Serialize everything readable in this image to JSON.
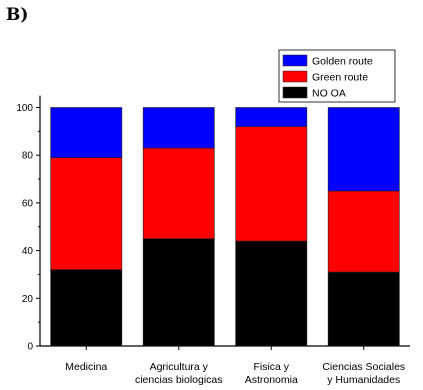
{
  "panel_label": "B)",
  "chart_data": {
    "type": "bar",
    "stacked": true,
    "categories": [
      [
        "Medicina"
      ],
      [
        "Agricultura y",
        "ciencias biologicas"
      ],
      [
        "Fisica y",
        "Astronomia"
      ],
      [
        "Ciencias Sociales",
        "y Humanidades"
      ]
    ],
    "series": [
      {
        "name": "NO OA",
        "color": "#000000",
        "values": [
          32,
          45,
          44,
          31
        ]
      },
      {
        "name": "Green route",
        "color": "#ff0000",
        "values": [
          47,
          38,
          48,
          34
        ]
      },
      {
        "name": "Golden route",
        "color": "#0000ff",
        "values": [
          21,
          17,
          8,
          35
        ]
      }
    ],
    "legend_order": [
      "Golden route",
      "Green route",
      "NO OA"
    ],
    "legend_position": "top-right",
    "ylim": [
      0,
      105
    ],
    "yticks": [
      0,
      20,
      40,
      60,
      80,
      100
    ],
    "grid": false
  }
}
